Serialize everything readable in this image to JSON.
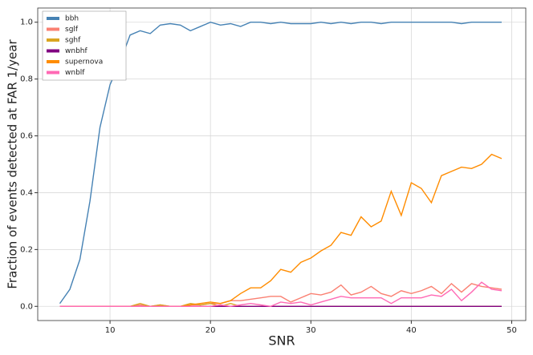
{
  "chart_data": {
    "type": "line",
    "xlabel": "SNR",
    "ylabel": "Fraction of events detected at FAR 1/year",
    "x": [
      5,
      6,
      7,
      8,
      9,
      10,
      11,
      12,
      13,
      14,
      15,
      16,
      17,
      18,
      19,
      20,
      21,
      22,
      23,
      24,
      25,
      26,
      27,
      28,
      29,
      30,
      31,
      32,
      33,
      34,
      35,
      36,
      37,
      38,
      39,
      40,
      41,
      42,
      43,
      44,
      45,
      46,
      47,
      48,
      49
    ],
    "series": [
      {
        "name": "bbh",
        "color": "#4682b4",
        "values": [
          0.01,
          0.06,
          0.165,
          0.37,
          0.63,
          0.78,
          0.86,
          0.955,
          0.97,
          0.96,
          0.99,
          0.995,
          0.99,
          0.97,
          0.985,
          1.0,
          0.99,
          0.995,
          0.985,
          1.0,
          1.0,
          0.995,
          1.0,
          0.995,
          0.995,
          0.995,
          1.0,
          0.995,
          1.0,
          0.995,
          1.0,
          1.0,
          0.995,
          1.0,
          1.0,
          1.0,
          1.0,
          1.0,
          1.0,
          1.0,
          0.995,
          1.0,
          1.0,
          1.0,
          1.0
        ]
      },
      {
        "name": "sglf",
        "color": "#fa8072",
        "values": [
          0,
          0,
          0,
          0,
          0,
          0,
          0,
          0,
          0.005,
          0,
          0.005,
          0,
          0,
          0.005,
          0.005,
          0.01,
          0.01,
          0.02,
          0.02,
          0.025,
          0.03,
          0.035,
          0.035,
          0.015,
          0.03,
          0.045,
          0.04,
          0.05,
          0.075,
          0.04,
          0.05,
          0.07,
          0.045,
          0.035,
          0.055,
          0.045,
          0.055,
          0.07,
          0.045,
          0.08,
          0.05,
          0.08,
          0.07,
          0.065,
          0.06
        ]
      },
      {
        "name": "sghf",
        "color": "#daa520",
        "values": [
          0,
          0,
          0,
          0,
          0,
          0,
          0,
          0,
          0.01,
          0,
          0.005,
          0,
          0,
          0.01,
          0.005,
          0.01,
          0,
          0.01,
          0,
          0,
          0,
          0,
          0,
          0,
          0,
          0,
          0,
          0,
          0,
          0,
          0,
          0,
          0,
          0,
          0,
          0,
          0,
          0,
          0,
          0,
          0,
          0,
          0,
          0,
          0
        ]
      },
      {
        "name": "wnbhf",
        "color": "#800080",
        "values": [
          0,
          0,
          0,
          0,
          0,
          0,
          0,
          0,
          0,
          0,
          0,
          0,
          0,
          0,
          0,
          0,
          0,
          0,
          0,
          0,
          0,
          0,
          0,
          0,
          0,
          0,
          0,
          0,
          0,
          0,
          0,
          0,
          0,
          0,
          0,
          0,
          0,
          0,
          0,
          0,
          0,
          0,
          0,
          0,
          0
        ]
      },
      {
        "name": "supernova",
        "color": "#ff8c00",
        "values": [
          0,
          0,
          0,
          0,
          0,
          0,
          0,
          0,
          0,
          0,
          0,
          0,
          0,
          0.005,
          0.01,
          0.015,
          0.01,
          0.02,
          0.045,
          0.065,
          0.065,
          0.09,
          0.13,
          0.12,
          0.155,
          0.17,
          0.195,
          0.215,
          0.26,
          0.25,
          0.315,
          0.28,
          0.3,
          0.405,
          0.32,
          0.435,
          0.415,
          0.365,
          0.46,
          0.475,
          0.49,
          0.485,
          0.5,
          0.535,
          0.52
        ]
      },
      {
        "name": "wnblf",
        "color": "#ff69b4",
        "values": [
          0,
          0,
          0,
          0,
          0,
          0,
          0,
          0,
          0,
          0,
          0,
          0,
          0,
          0,
          0,
          0,
          0.005,
          0,
          0.005,
          0.01,
          0.005,
          0,
          0.015,
          0.01,
          0.015,
          0.005,
          0.015,
          0.025,
          0.035,
          0.03,
          0.03,
          0.03,
          0.03,
          0.01,
          0.03,
          0.03,
          0.03,
          0.04,
          0.035,
          0.06,
          0.02,
          0.05,
          0.085,
          0.06,
          0.055
        ]
      }
    ],
    "xlim": [
      2.8,
      51.4
    ],
    "ylim": [
      -0.05,
      1.05
    ],
    "xticks": [
      10,
      20,
      30,
      40,
      50
    ],
    "yticks": [
      {
        "value": 0,
        "label": "0.0"
      },
      {
        "value": 0.2,
        "label": "0.2"
      },
      {
        "value": 0.4,
        "label": "0.4"
      },
      {
        "value": 0.6,
        "label": "0.6"
      },
      {
        "value": 0.8,
        "label": "0.8"
      },
      {
        "value": 1,
        "label": "1.0"
      }
    ],
    "grid": true,
    "legend": "upper-left"
  }
}
